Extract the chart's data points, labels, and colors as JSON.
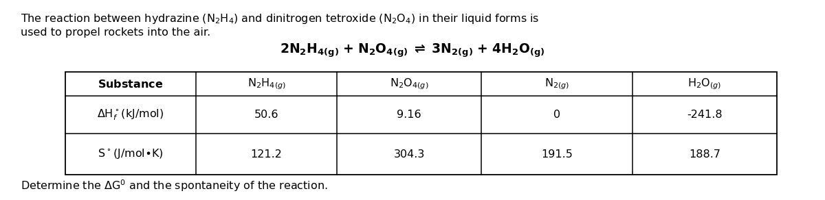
{
  "background_color": "#ffffff",
  "font_size_body": 11.5,
  "font_size_equation": 13.5,
  "font_size_table_header": 11.5,
  "font_size_table_body": 11.5,
  "font_size_footer": 11.5,
  "table": {
    "row1_values": [
      "50.6",
      "9.16",
      "0",
      "-241.8"
    ],
    "row2_values": [
      "121.2",
      "304.3",
      "191.5",
      "188.7"
    ]
  }
}
